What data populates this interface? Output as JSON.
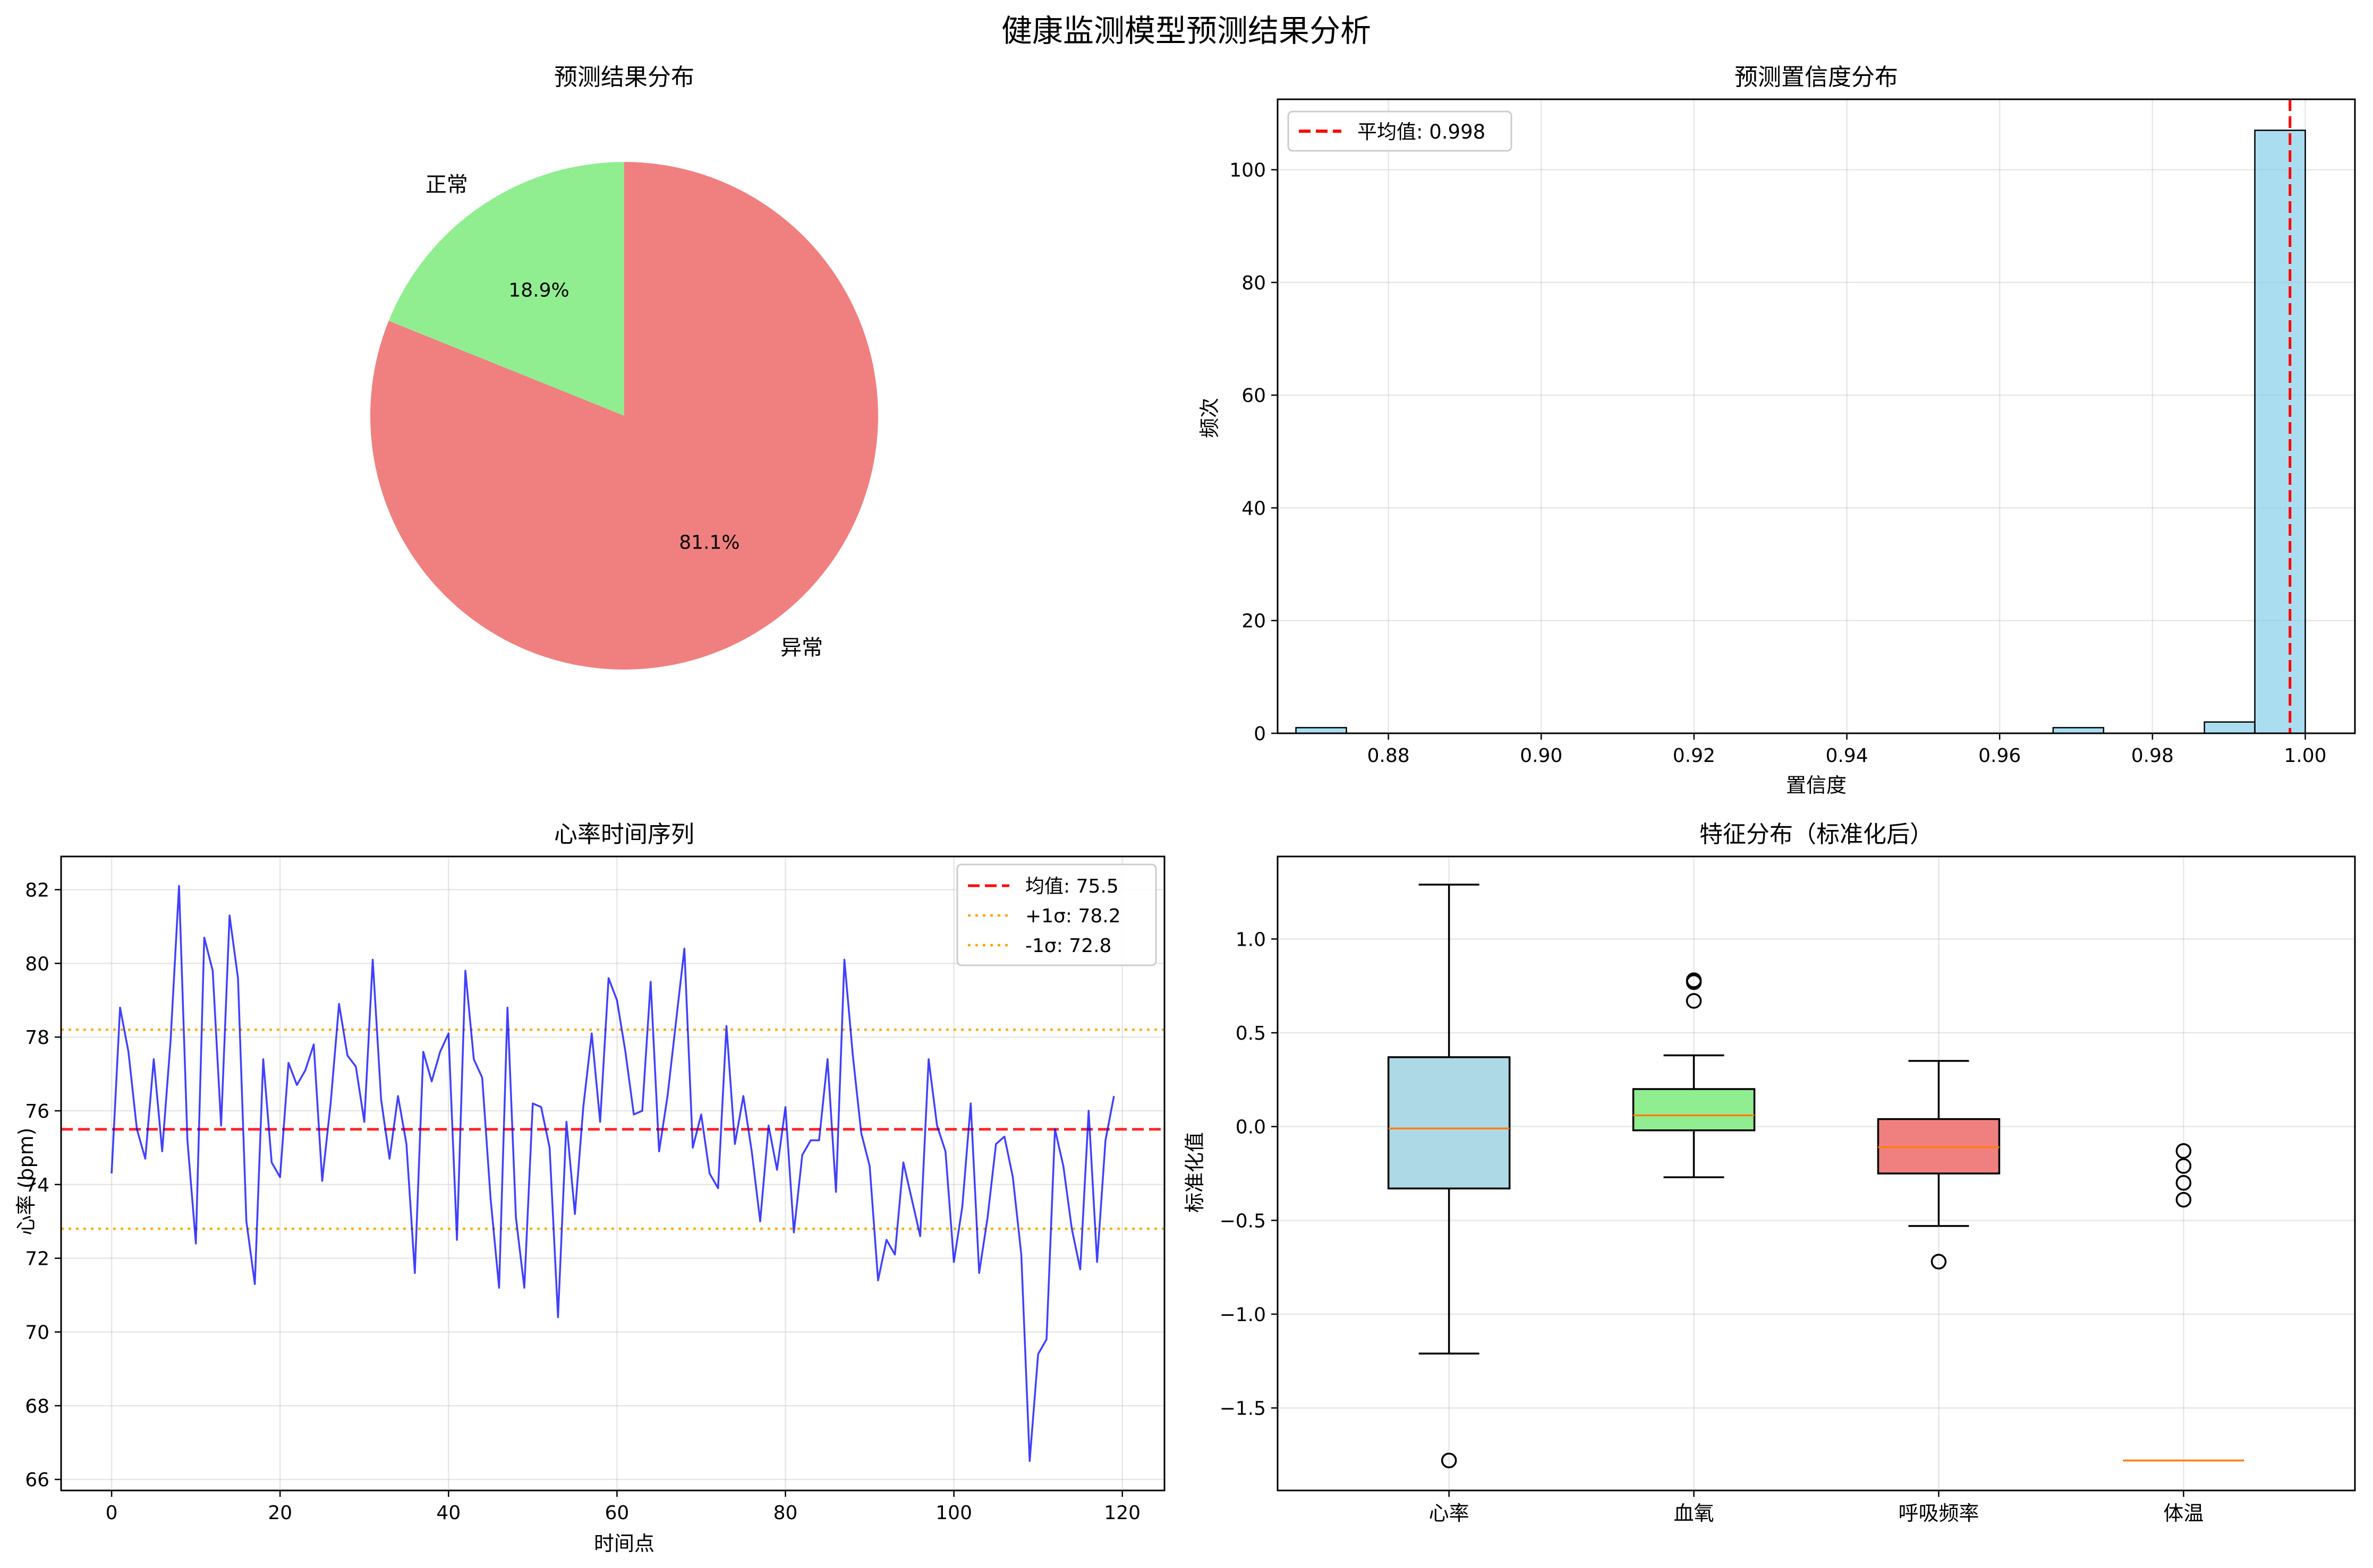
{
  "figure": {
    "title": "健康监测模型预测结果分析"
  },
  "chart_data": [
    {
      "type": "pie",
      "title": "预测结果分布",
      "slices": [
        {
          "label": "正常",
          "value": 18.9,
          "pct_label": "18.9%",
          "color": "#90ee90"
        },
        {
          "label": "异常",
          "value": 81.1,
          "pct_label": "81.1%",
          "color": "#f08080"
        }
      ]
    },
    {
      "type": "bar",
      "title": "预测置信度分布",
      "xlabel": "置信度",
      "ylabel": "频次",
      "xlim": [
        0.8655,
        1.0065
      ],
      "ylim": [
        0,
        112.5
      ],
      "xticks": [
        0.88,
        0.9,
        0.92,
        0.94,
        0.96,
        0.98,
        1.0
      ],
      "xtick_labels": [
        "0.88",
        "0.90",
        "0.92",
        "0.94",
        "0.96",
        "0.98",
        "1.00"
      ],
      "yticks": [
        0,
        20,
        40,
        60,
        80,
        100
      ],
      "ytick_labels": [
        "0",
        "20",
        "40",
        "60",
        "80",
        "100"
      ],
      "bars": [
        {
          "x0": 0.8679,
          "x1": 0.8745,
          "count": 1
        },
        {
          "x0": 0.967,
          "x1": 0.9736,
          "count": 1
        },
        {
          "x0": 0.9868,
          "x1": 0.9934,
          "count": 2
        },
        {
          "x0": 0.9934,
          "x1": 1.0,
          "count": 107
        }
      ],
      "mean_line": {
        "x": 0.998,
        "label": "平均值: 0.998",
        "color": "#ff0000"
      },
      "bar_color": "#87ceeb",
      "grid": true,
      "legend": "top-left"
    },
    {
      "type": "line",
      "title": "心率时间序列",
      "xlabel": "时间点",
      "ylabel": "心率 (bpm)",
      "xlim": [
        -6,
        125
      ],
      "ylim": [
        65.7,
        82.9
      ],
      "xticks": [
        0,
        20,
        40,
        60,
        80,
        100,
        120
      ],
      "xtick_labels": [
        "0",
        "20",
        "40",
        "60",
        "80",
        "100",
        "120"
      ],
      "yticks": [
        66,
        68,
        70,
        72,
        74,
        76,
        78,
        80,
        82
      ],
      "ytick_labels": [
        "66",
        "68",
        "70",
        "72",
        "74",
        "76",
        "78",
        "80",
        "82"
      ],
      "series": [
        {
          "color": "#0000ff",
          "values": [
            74.3,
            78.8,
            77.6,
            75.5,
            74.7,
            77.4,
            74.9,
            77.9,
            82.1,
            75.2,
            72.4,
            80.7,
            79.8,
            75.6,
            81.3,
            79.6,
            73.0,
            71.3,
            77.4,
            74.6,
            74.2,
            77.3,
            76.7,
            77.1,
            77.8,
            74.1,
            76.2,
            78.9,
            77.5,
            77.2,
            75.7,
            80.1,
            76.3,
            74.7,
            76.4,
            75.1,
            71.6,
            77.6,
            76.8,
            77.6,
            78.1,
            72.5,
            79.8,
            77.4,
            76.9,
            73.6,
            71.2,
            78.8,
            73.1,
            71.2,
            76.2,
            76.1,
            75.0,
            70.4,
            75.7,
            73.2,
            76.1,
            78.1,
            75.7,
            79.6,
            79.0,
            77.6,
            75.9,
            76.0,
            79.5,
            74.9,
            76.4,
            78.4,
            80.4,
            75.0,
            75.9,
            74.3,
            73.9,
            78.3,
            75.1,
            76.4,
            74.9,
            73.0,
            75.6,
            74.4,
            76.1,
            72.7,
            74.8,
            75.2,
            75.2,
            77.4,
            73.8,
            80.1,
            77.5,
            75.4,
            74.5,
            71.4,
            72.5,
            72.1,
            74.6,
            73.6,
            72.6,
            77.4,
            75.6,
            74.9,
            71.9,
            73.4,
            76.2,
            71.6,
            73.1,
            75.1,
            75.3,
            74.2,
            72.1,
            66.5,
            69.4,
            69.8,
            75.5,
            74.5,
            72.8,
            71.7,
            76.0,
            71.9,
            75.2,
            76.4
          ]
        }
      ],
      "reference_lines": [
        {
          "y": 75.5,
          "label": "均值: 75.5",
          "color": "#ff0000",
          "style": "dashed"
        },
        {
          "y": 78.2,
          "label": "+1σ: 78.2",
          "color": "#ffa500",
          "style": "dotted"
        },
        {
          "y": 72.8,
          "label": "-1σ: 72.8",
          "color": "#ffa500",
          "style": "dotted"
        }
      ],
      "grid": true,
      "legend": "top-right"
    },
    {
      "type": "box",
      "title": "特征分布（标准化后）",
      "ylabel": "标准化值",
      "ylim": [
        -1.94,
        1.44
      ],
      "yticks": [
        -1.5,
        -1.0,
        -0.5,
        0.0,
        0.5,
        1.0
      ],
      "ytick_labels": [
        "−1.5",
        "−1.0",
        "−0.5",
        "0.0",
        "0.5",
        "1.0"
      ],
      "boxes": [
        {
          "label": "心率",
          "color": "#add8e6",
          "whisker_low": -1.21,
          "q1": -0.33,
          "median": -0.01,
          "q3": 0.37,
          "whisker_high": 1.29,
          "outliers": [
            -1.78
          ]
        },
        {
          "label": "血氧",
          "color": "#90ee90",
          "whisker_low": -0.27,
          "q1": -0.02,
          "median": 0.06,
          "q3": 0.2,
          "whisker_high": 0.38,
          "outliers": [
            0.67,
            0.77,
            0.78
          ]
        },
        {
          "label": "呼吸频率",
          "color": "#f08080",
          "whisker_low": -0.53,
          "q1": -0.25,
          "median": -0.11,
          "q3": 0.04,
          "whisker_high": 0.35,
          "outliers": [
            -0.72
          ]
        },
        {
          "label": "体温",
          "color": "#add8e6",
          "whisker_low": -1.78,
          "q1": -1.78,
          "median": -1.78,
          "q3": -1.78,
          "whisker_high": -1.78,
          "outliers": [
            -0.13,
            -0.21,
            -0.3,
            -0.39
          ]
        }
      ],
      "median_color": "#ff7f0e",
      "grid": true
    }
  ]
}
